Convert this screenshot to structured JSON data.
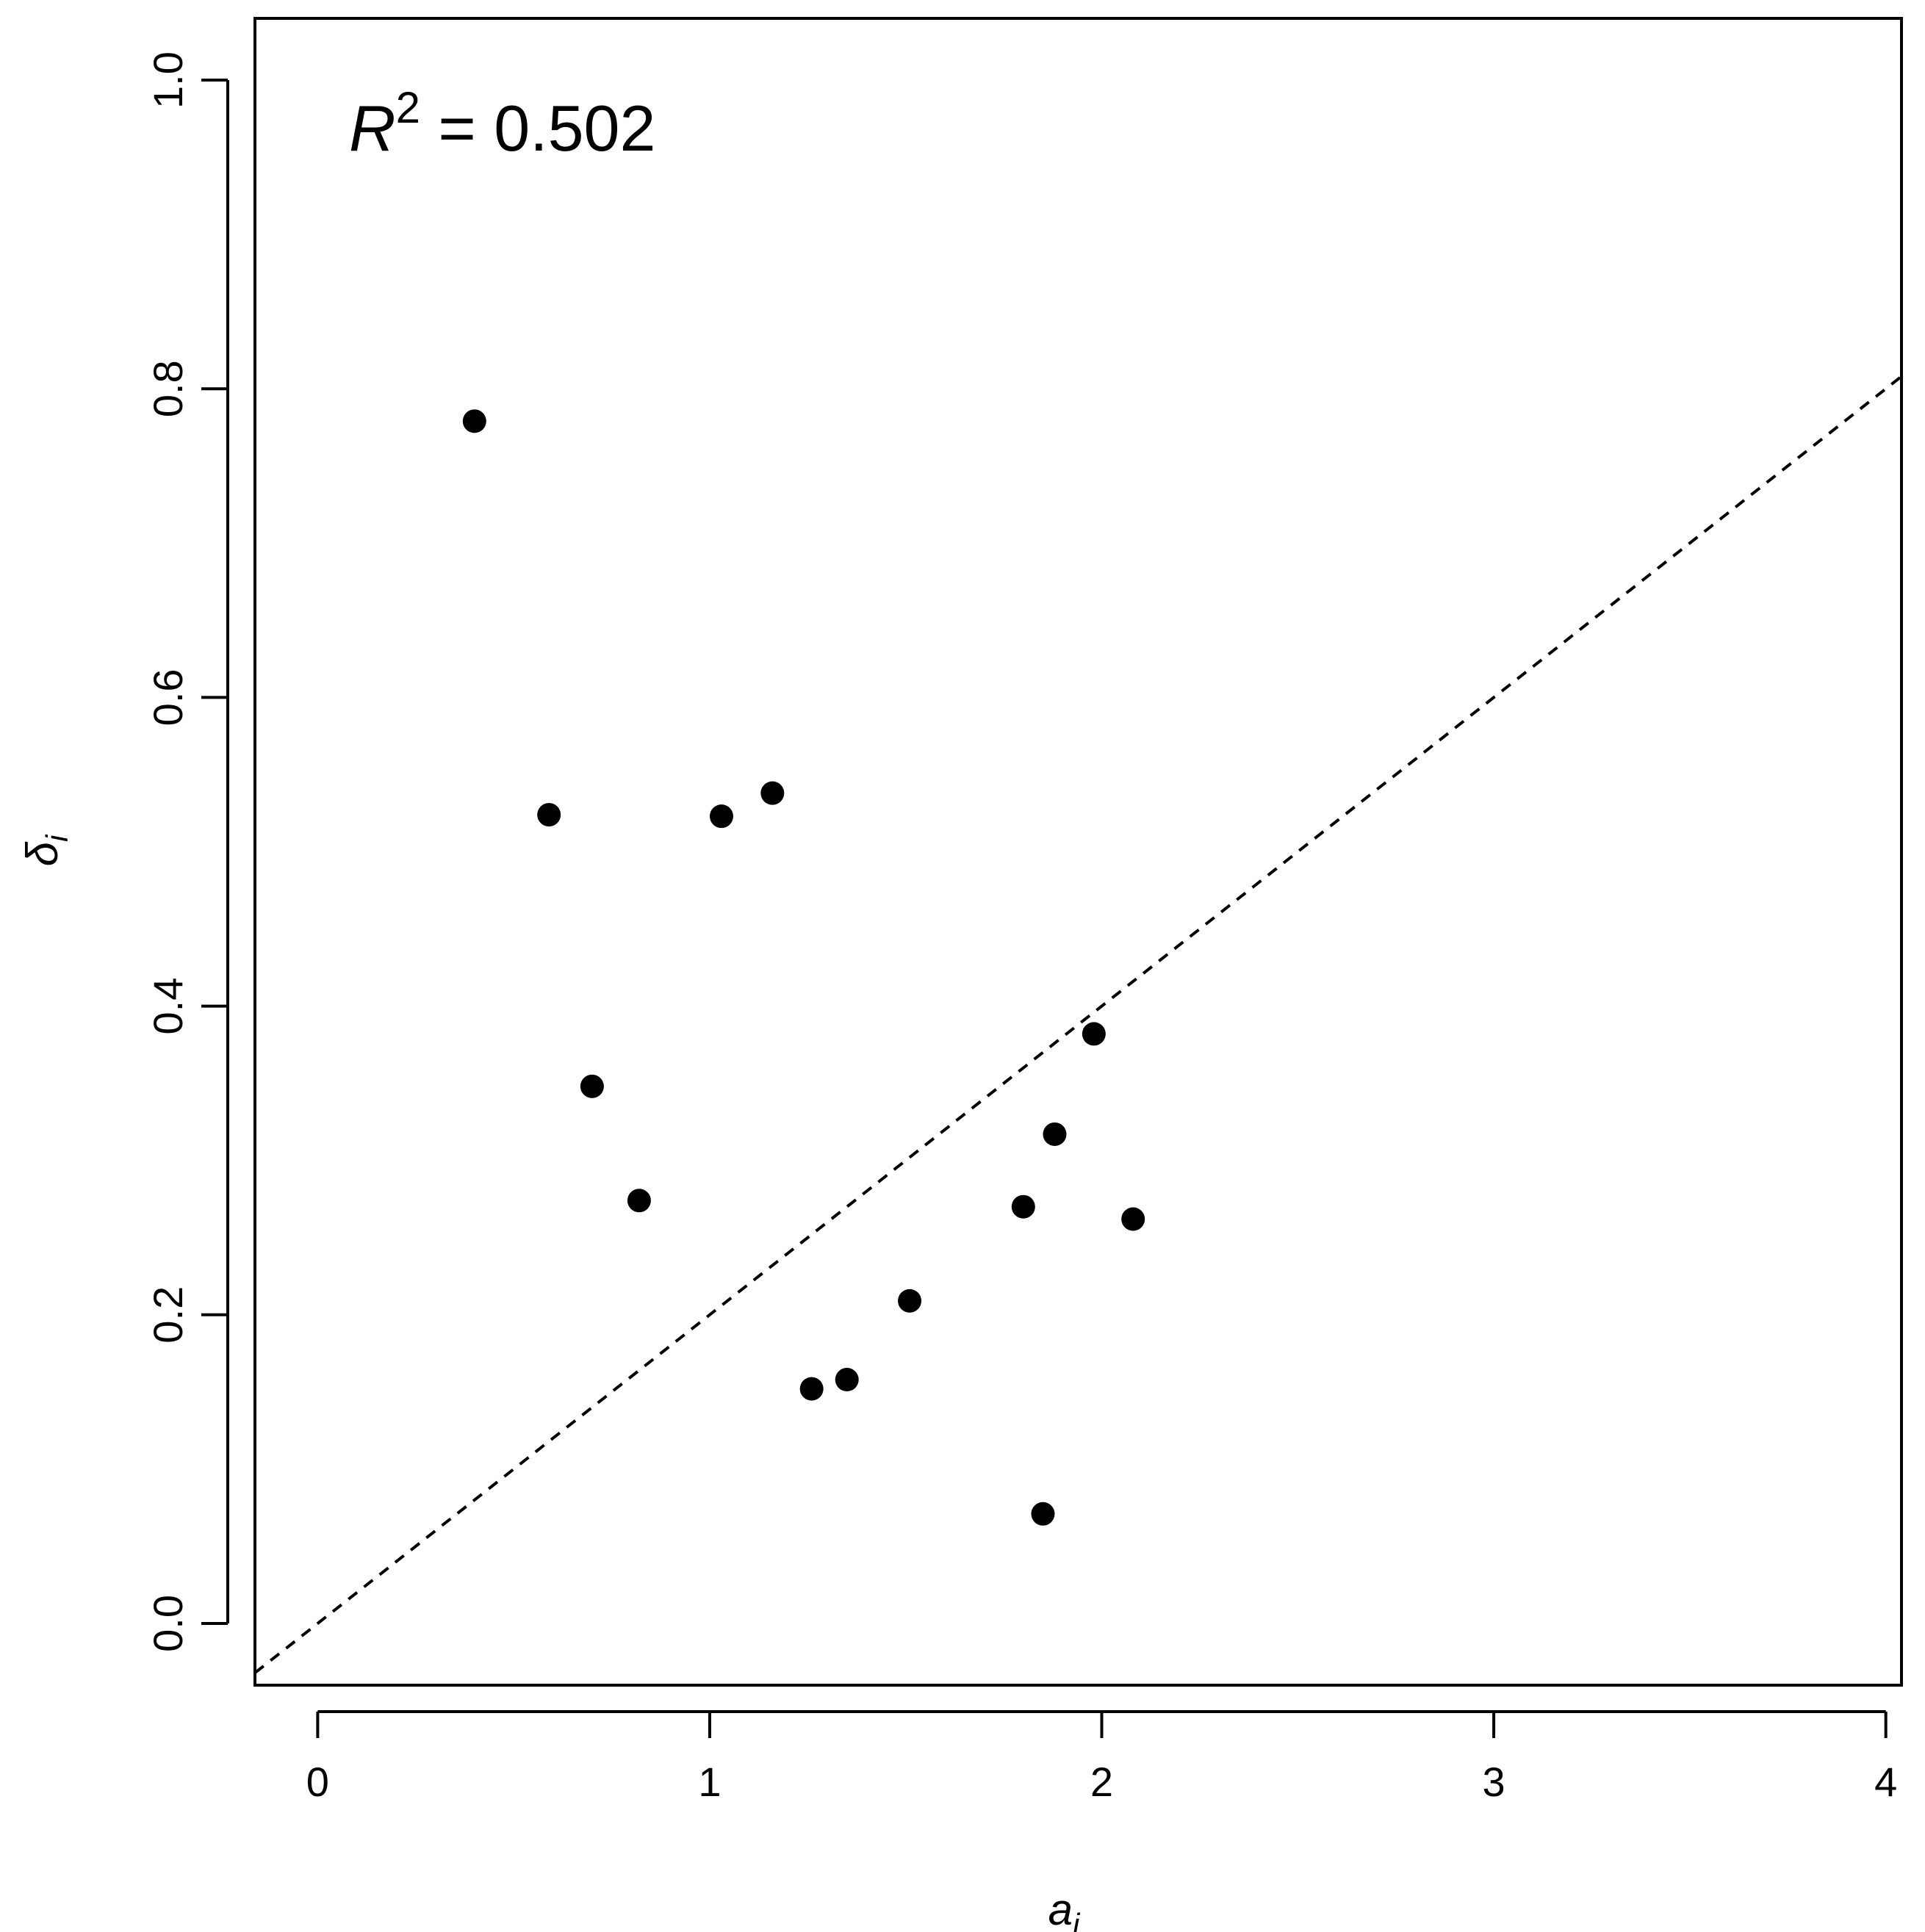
{
  "chart_data": {
    "type": "scatter",
    "xlabel_main": "a",
    "xlabel_sub": "i",
    "ylabel_main": "δ",
    "ylabel_sub": "i",
    "annotation": {
      "var": "R",
      "sup": "2",
      "rest": " = 0.502"
    },
    "xlim": [
      -0.16,
      4.04
    ],
    "ylim": [
      -0.04,
      1.04
    ],
    "xticks": [
      0,
      1,
      2,
      3,
      4
    ],
    "xtick_labels": [
      "0",
      "1",
      "2",
      "3",
      "4"
    ],
    "yticks": [
      0.0,
      0.2,
      0.4,
      0.6,
      0.8,
      1.0
    ],
    "ytick_labels": [
      "0.0",
      "0.2",
      "0.4",
      "0.6",
      "0.8",
      "1.0"
    ],
    "points": [
      {
        "x": 0.4,
        "y": 0.779
      },
      {
        "x": 0.59,
        "y": 0.524
      },
      {
        "x": 0.7,
        "y": 0.348
      },
      {
        "x": 0.82,
        "y": 0.274
      },
      {
        "x": 1.03,
        "y": 0.523
      },
      {
        "x": 1.16,
        "y": 0.538
      },
      {
        "x": 1.26,
        "y": 0.152
      },
      {
        "x": 1.35,
        "y": 0.158
      },
      {
        "x": 1.51,
        "y": 0.209
      },
      {
        "x": 1.8,
        "y": 0.27
      },
      {
        "x": 1.85,
        "y": 0.071
      },
      {
        "x": 1.88,
        "y": 0.317
      },
      {
        "x": 1.98,
        "y": 0.382
      },
      {
        "x": 2.08,
        "y": 0.262
      }
    ],
    "reference_line": {
      "intercept": 0.0,
      "slope": 0.2,
      "style": "dashed"
    },
    "grid": false,
    "legend": "none"
  }
}
